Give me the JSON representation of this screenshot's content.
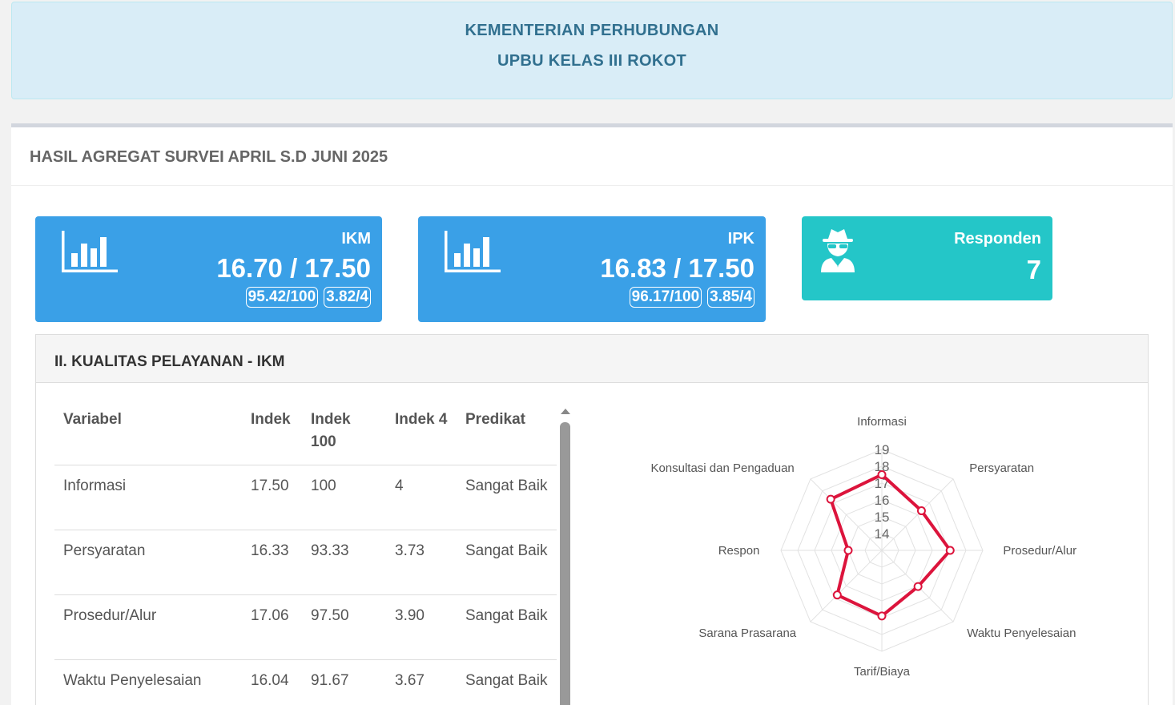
{
  "header": {
    "line1": "KEMENTERIAN PERHUBUNGAN",
    "line2": "UPBU KELAS III ROKOT"
  },
  "section": {
    "title": "HASIL AGREGAT SURVEI APRIL S.D JUNI 2025"
  },
  "ikm_box": {
    "label": "IKM",
    "value": "16.70 / 17.50",
    "pill100": "95.42/100",
    "pill4": "3.82/4",
    "icon": "bar-chart-icon"
  },
  "ipk_box": {
    "label": "IPK",
    "value": "16.83 / 17.50",
    "pill100": "96.17/100",
    "pill4": "3.85/4",
    "icon": "bar-chart-icon"
  },
  "resp_box": {
    "label": "Responden",
    "value": "7",
    "icon": "user-secret-icon"
  },
  "panel": {
    "title": "II. KUALITAS PELAYANAN - IKM",
    "columns": [
      "Variabel",
      "Indek",
      "Indek 100",
      "Indek 4",
      "Predikat"
    ],
    "rows": [
      {
        "variabel": "Informasi",
        "indek": "17.50",
        "indek100": "100",
        "indek4": "4",
        "predikat": "Sangat Baik"
      },
      {
        "variabel": "Persyaratan",
        "indek": "16.33",
        "indek100": "93.33",
        "indek4": "3.73",
        "predikat": "Sangat Baik"
      },
      {
        "variabel": "Prosedur/Alur",
        "indek": "17.06",
        "indek100": "97.50",
        "indek4": "3.90",
        "predikat": "Sangat Baik"
      },
      {
        "variabel": "Waktu Penyelesaian",
        "indek": "16.04",
        "indek100": "91.67",
        "indek4": "3.67",
        "predikat": "Sangat Baik"
      }
    ]
  },
  "chart_data": {
    "type": "radar",
    "categories": [
      "Informasi",
      "Persyaratan",
      "Prosedur/Alur",
      "Waktu Penyelesaian",
      "Tarif/Biaya",
      "Sarana Prasarana",
      "Respon",
      "Konsultasi dan Pengaduan"
    ],
    "values": [
      17.5,
      16.33,
      17.06,
      16.04,
      16.9,
      16.75,
      15.0,
      17.3
    ],
    "r_ticks": [
      14,
      15,
      16,
      17,
      18,
      19
    ],
    "r_range": [
      13,
      19
    ],
    "series_color": "#dc143c",
    "grid": true
  },
  "colors": {
    "banner_bg": "#d9edf7",
    "banner_text": "#31708f",
    "box_blue": "#3aa0e7",
    "box_teal": "#24c6c8"
  }
}
